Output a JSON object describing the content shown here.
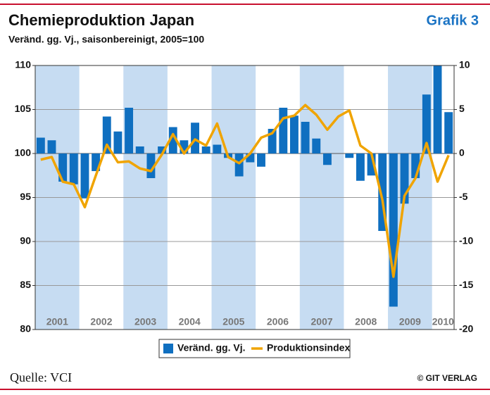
{
  "chart_data": {
    "type": "bar_line",
    "title": "Chemieproduktion Japan",
    "subtitle": "Veränd. gg. Vj., saisonbereinigt, 2005=100",
    "label": "Grafik 3",
    "source": "Quelle: VCI",
    "copyright": "© GIT VERLAG",
    "categories": [
      "2001",
      null,
      null,
      null,
      "2002",
      null,
      null,
      null,
      "2003",
      null,
      null,
      null,
      "2004",
      null,
      null,
      null,
      "2005",
      null,
      null,
      null,
      "2006",
      null,
      null,
      null,
      "2007",
      null,
      null,
      null,
      "2008",
      null,
      null,
      null,
      "2009",
      null,
      null,
      null,
      "2010",
      null
    ],
    "band_color": "#c6dcf2",
    "series": [
      {
        "name": "Veränd. gg. Vj.",
        "type": "bar",
        "axis": "y2",
        "color": "#0f6fc0",
        "values": [
          1.8,
          1.5,
          -3.2,
          -3.5,
          -5.1,
          -2.0,
          4.2,
          2.5,
          5.2,
          0.8,
          -2.8,
          0.8,
          3.0,
          1.5,
          3.5,
          0.8,
          1.0,
          -0.5,
          -2.6,
          -1.0,
          -1.5,
          2.8,
          5.2,
          4.3,
          3.6,
          1.7,
          -1.3,
          0,
          -0.5,
          -3.1,
          -2.5,
          -8.8,
          -17.4,
          -5.7,
          -2.8,
          6.7,
          10,
          4.7
        ]
      },
      {
        "name": "Produktionsindex",
        "type": "line",
        "color": "#f0a400",
        "values": [
          99.3,
          99.6,
          96.8,
          96.5,
          93.9,
          97.5,
          101.0,
          99.0,
          99.1,
          98.3,
          98.0,
          99.9,
          102.2,
          100.0,
          101.6,
          100.9,
          103.4,
          99.6,
          98.9,
          100.0,
          101.8,
          102.3,
          104.0,
          104.3,
          105.5,
          104.4,
          102.7,
          104.2,
          104.9,
          100.9,
          100.0,
          94.7,
          86.0,
          95.2,
          97.2,
          101.2,
          96.8,
          99.8
        ]
      }
    ],
    "ylim": [
      80,
      110
    ],
    "yticks": [
      80,
      85,
      90,
      95,
      100,
      105,
      110
    ],
    "y2lim": [
      -20,
      10
    ],
    "y2ticks": [
      -20,
      -15,
      -10,
      -5,
      0,
      5,
      10
    ],
    "grid": true
  }
}
